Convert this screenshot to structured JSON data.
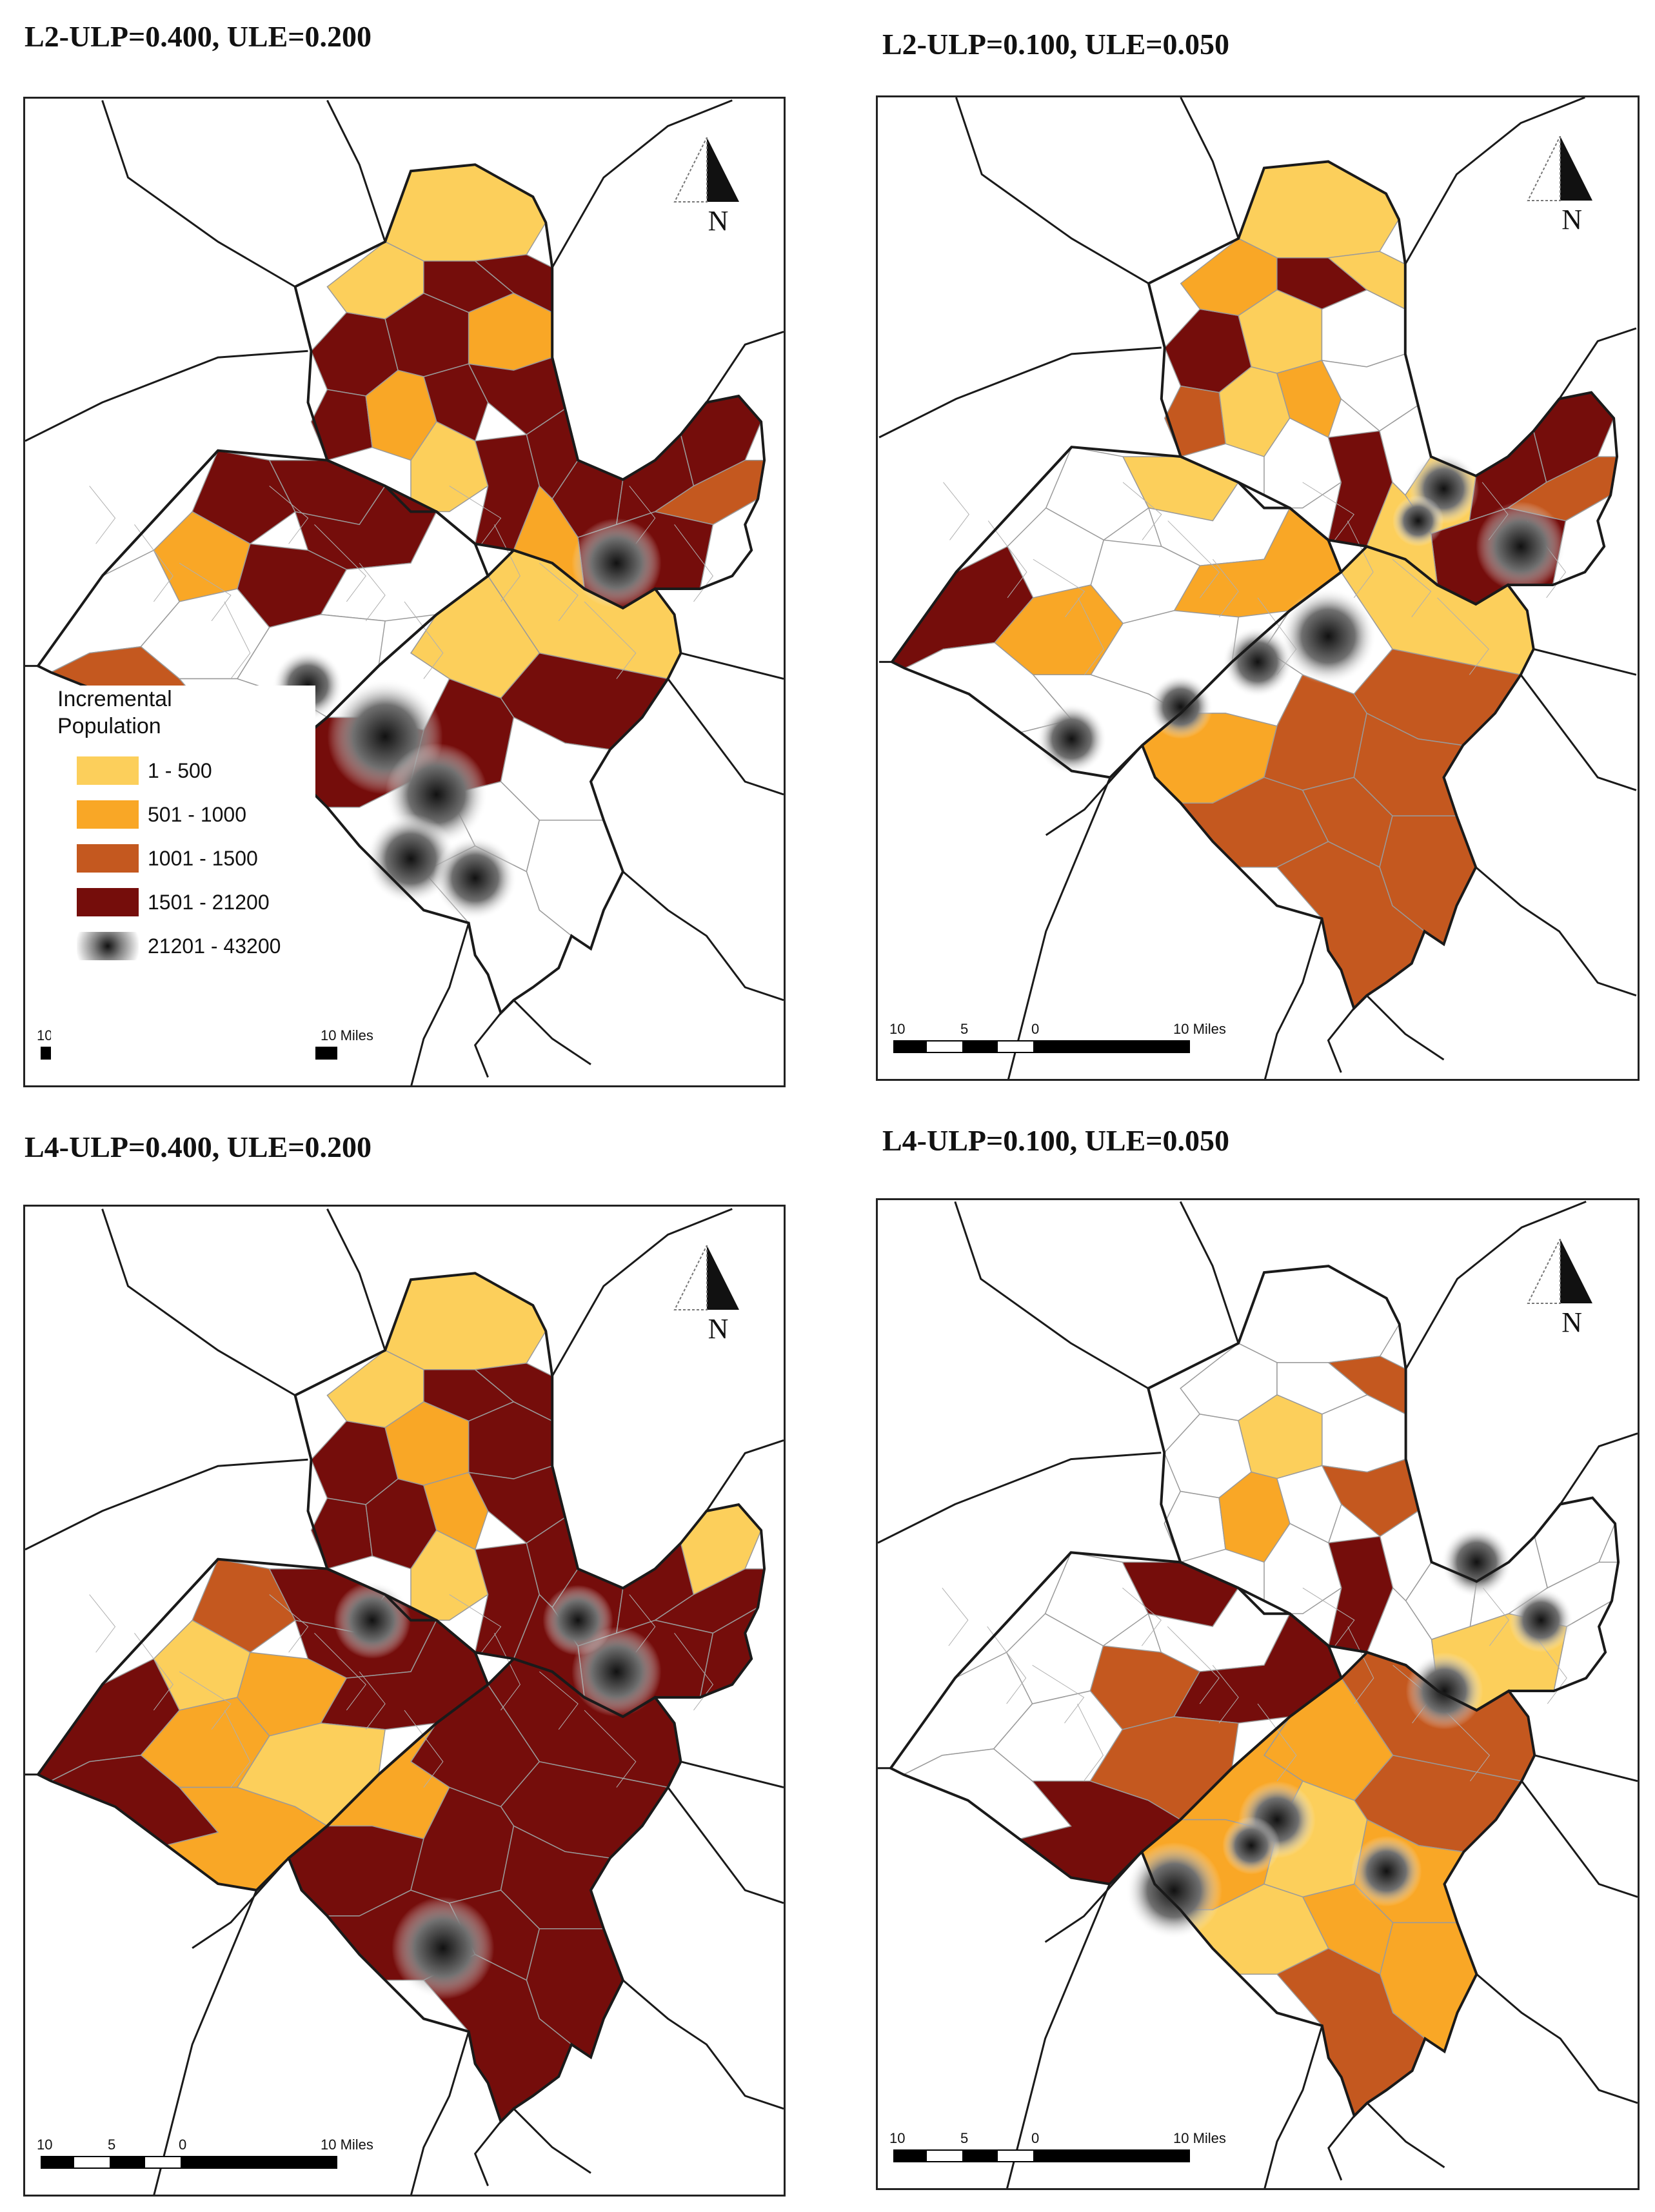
{
  "panels": [
    {
      "id": "p1",
      "title": "L2-ULP=0.400, ULE=0.200"
    },
    {
      "id": "p2",
      "title": "L2-ULP=0.100, ULE=0.050"
    },
    {
      "id": "p3",
      "title": "L4-ULP=0.400, ULE=0.200"
    },
    {
      "id": "p4",
      "title": "L4-ULP=0.100, ULE=0.050"
    }
  ],
  "legend": {
    "title": "Incremental Population",
    "classes": [
      {
        "label": "1 - 500",
        "color": "#fccf5b"
      },
      {
        "label": "501 - 1000",
        "color": "#f9a726"
      },
      {
        "label": "1001 - 1500",
        "color": "#c4581f"
      },
      {
        "label": "1501 - 21200",
        "color": "#750d0b"
      },
      {
        "label": "21201 - 43200",
        "color": "#111111"
      }
    ]
  },
  "scale_bar": {
    "ticks": [
      "10",
      "5",
      "0",
      "10 Miles"
    ]
  },
  "north_arrow": {
    "letter": "N"
  },
  "colors": {
    "boundary": "#1a1a1a",
    "tract_line": "#9a9a9a",
    "background": "#ffffff"
  }
}
